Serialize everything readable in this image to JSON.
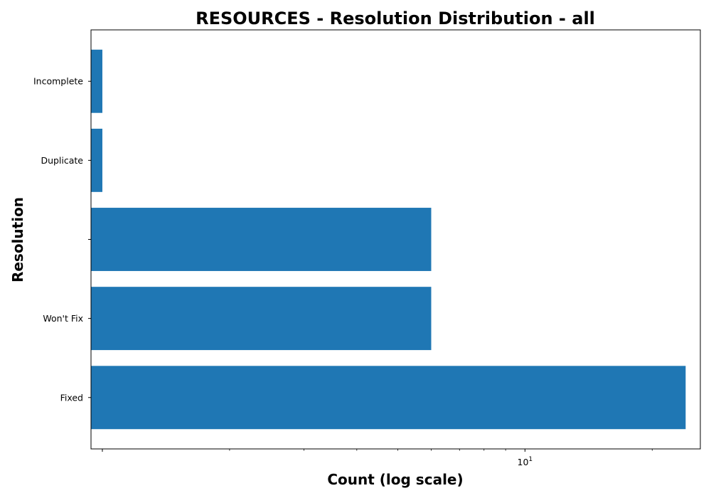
{
  "chart_data": {
    "type": "bar",
    "orientation": "horizontal",
    "title": "RESOURCES - Resolution Distribution - all",
    "xlabel": "Count (log scale)",
    "ylabel": "Resolution",
    "x_scale": "log",
    "xlim": [
      0.94,
      26
    ],
    "x_tick_labels": [
      {
        "value": 10,
        "base": "10",
        "exp": "1"
      }
    ],
    "categories": [
      "Fixed",
      "Won't Fix",
      "",
      "Duplicate",
      "Incomplete"
    ],
    "values": [
      24,
      6,
      6,
      1,
      1
    ],
    "bar_color": "#1f77b4",
    "grid": false,
    "legend": "none"
  }
}
